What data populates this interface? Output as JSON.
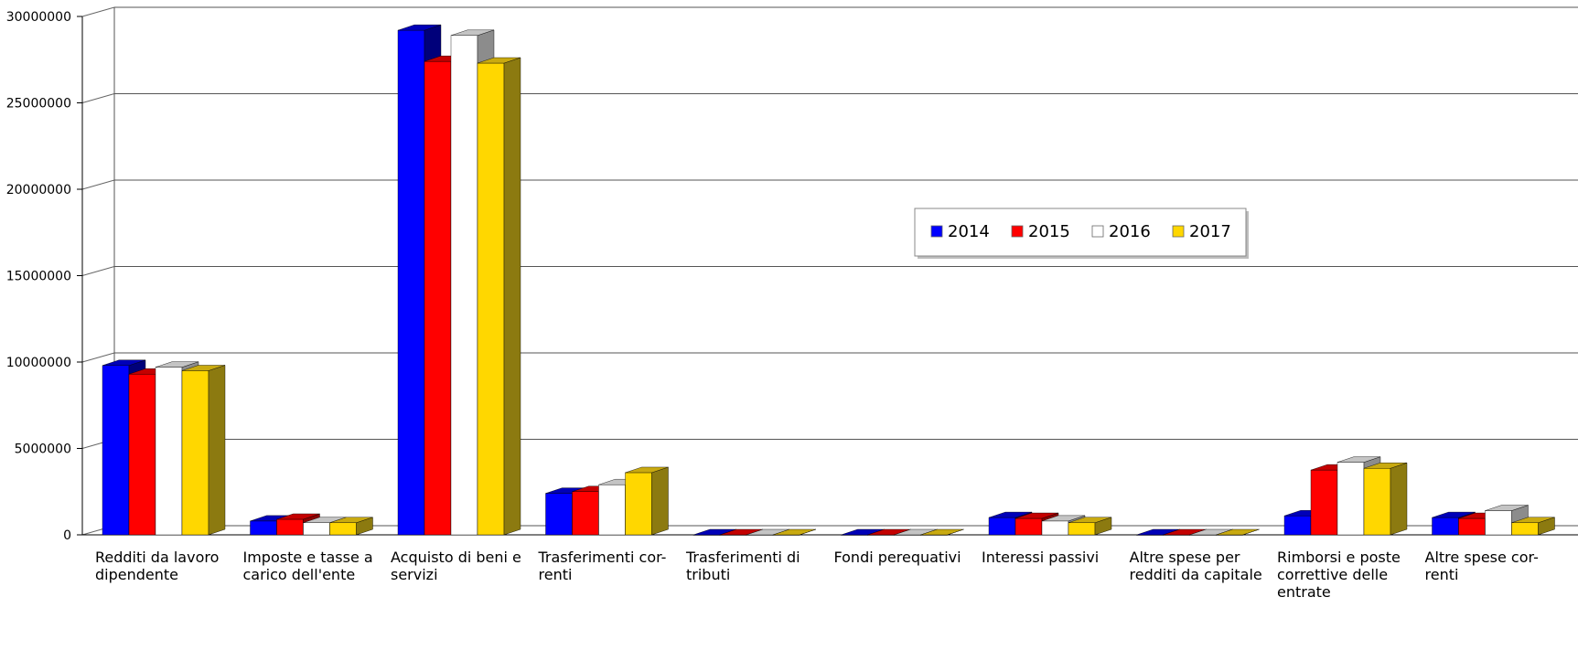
{
  "chart_data": {
    "type": "bar",
    "title": "",
    "xlabel": "",
    "ylabel": "",
    "ylim": [
      0,
      30000000
    ],
    "yticks": [
      0,
      5000000,
      10000000,
      15000000,
      20000000,
      25000000,
      30000000
    ],
    "ytick_labels": [
      "0",
      "5000000",
      "10000000",
      "15000000",
      "20000000",
      "25000000",
      "30000000"
    ],
    "grid": true,
    "legend_position": "center-right",
    "style": "3d",
    "categories": [
      [
        "Redditi da lavoro",
        "dipendente"
      ],
      [
        "Imposte e tasse a",
        "carico dell'ente"
      ],
      [
        "Acquisto di beni e",
        "servizi"
      ],
      [
        "Trasferimenti cor-",
        "renti"
      ],
      [
        "Trasferimenti di",
        "tributi"
      ],
      [
        "Fondi perequativi"
      ],
      [
        "Interessi passivi"
      ],
      [
        "Altre spese per",
        "redditi da capitale"
      ],
      [
        "Rimborsi e poste",
        "correttive delle",
        "entrate"
      ],
      [
        "Altre spese cor-",
        "renti"
      ]
    ],
    "series": [
      {
        "name": "2014",
        "color": "#0000ff",
        "side": "#00007a",
        "top": "#0000b8",
        "values": [
          9800000,
          800000,
          29200000,
          2400000,
          0,
          0,
          1000000,
          0,
          1100000,
          1000000
        ]
      },
      {
        "name": "2015",
        "color": "#ff0000",
        "side": "#8a0000",
        "top": "#c40000",
        "values": [
          9300000,
          900000,
          27400000,
          2500000,
          0,
          0,
          950000,
          0,
          3750000,
          950000
        ]
      },
      {
        "name": "2016",
        "color": "#ffffff",
        "side": "#8c8c8c",
        "top": "#c4c4c4",
        "values": [
          9700000,
          700000,
          28900000,
          2900000,
          0,
          0,
          800000,
          0,
          4200000,
          1400000
        ]
      },
      {
        "name": "2017",
        "color": "#ffd700",
        "side": "#8c7a10",
        "top": "#c9aa10",
        "values": [
          9500000,
          700000,
          27300000,
          3600000,
          0,
          0,
          700000,
          0,
          3850000,
          700000
        ]
      }
    ]
  }
}
